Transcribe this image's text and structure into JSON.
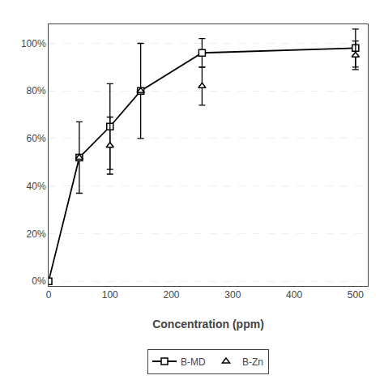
{
  "chart_data": {
    "type": "line",
    "xlabel": "Concentration (ppm)",
    "xlim": [
      0,
      520
    ],
    "ylim": [
      -2,
      108
    ],
    "xticks": [
      0,
      100,
      200,
      300,
      400,
      500
    ],
    "yticks": [
      {
        "value": 0,
        "label": "0%"
      },
      {
        "value": 20,
        "label": "20%"
      },
      {
        "value": 40,
        "label": "40%"
      },
      {
        "value": 60,
        "label": "60%"
      },
      {
        "value": 80,
        "label": "80%"
      },
      {
        "value": 100,
        "label": "100%"
      }
    ],
    "grid": "y",
    "legend": "bottom",
    "series": [
      {
        "name": "B-MD",
        "color": "#000000",
        "marker": "square",
        "line_style": "solid",
        "x": [
          0,
          50,
          100,
          150,
          250,
          500
        ],
        "values": [
          0,
          52,
          65,
          80,
          96,
          98
        ],
        "yerr": [
          0,
          15,
          18,
          20,
          6,
          8
        ]
      },
      {
        "name": "B-Zn",
        "color": "#000000",
        "marker": "triangle-up",
        "line_style": "none",
        "x": [
          50,
          100,
          150,
          250,
          500
        ],
        "values": [
          52,
          57,
          80,
          82,
          95
        ],
        "yerr": [
          0,
          12,
          0,
          8,
          6
        ]
      }
    ]
  }
}
